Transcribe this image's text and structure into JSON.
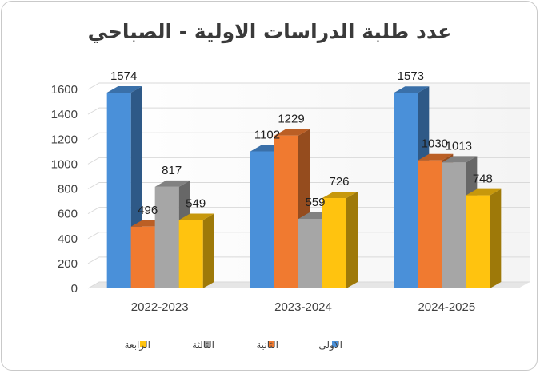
{
  "chart_data": {
    "type": "bar",
    "title": "عدد طلبة الدراسات الاولية - الصباحي",
    "xlabel": "",
    "ylabel": "",
    "categories": [
      "2022-2023",
      "2023-2024",
      "2024-2025"
    ],
    "series": [
      {
        "name": "الاولى",
        "values": [
          1574,
          1102,
          1573
        ],
        "color": "#4a90d9"
      },
      {
        "name": "الثانية",
        "values": [
          496,
          1229,
          1030
        ],
        "color": "#f07a30"
      },
      {
        "name": "الثالثة",
        "values": [
          817,
          559,
          1013
        ],
        "color": "#a6a6a6"
      },
      {
        "name": "الرابعة",
        "values": [
          549,
          726,
          748
        ],
        "color": "#ffc30f"
      }
    ],
    "ylim": [
      0,
      1600
    ],
    "yticks": [
      0,
      200,
      400,
      600,
      800,
      1000,
      1200,
      1400,
      1600
    ],
    "grid": true,
    "legend": "bottom",
    "style": "3d-clustered-bar"
  }
}
